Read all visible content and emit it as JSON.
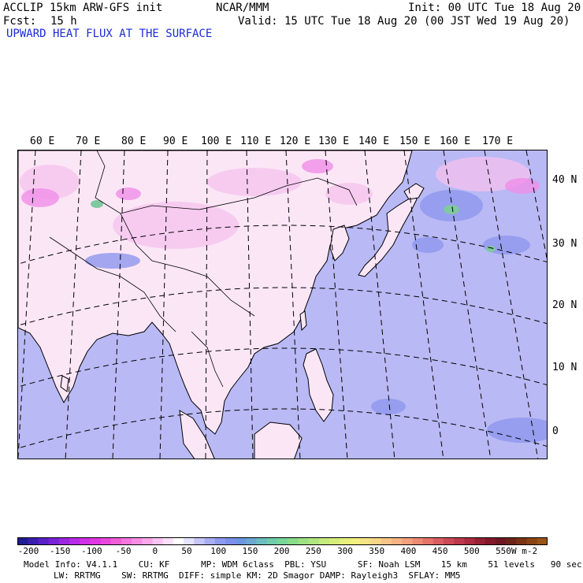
{
  "header": {
    "model": "ACCLIP 15km ARW-GFS init",
    "forecast_label": "Fcst:",
    "forecast_value": "15 h",
    "center": "NCAR/MMM",
    "init": "Init: 00 UTC Tue 18 Aug 20",
    "valid": "Valid: 15 UTC Tue 18 Aug 20 (00 JST Wed 19 Aug 20)",
    "field": "UPWARD HEAT FLUX AT THE SURFACE"
  },
  "map": {
    "lon_labels": [
      "60 E",
      "70 E",
      "80 E",
      "90 E",
      "100 E",
      "110 E",
      "120 E",
      "130 E",
      "140 E",
      "150 E",
      "160 E",
      "170 E"
    ],
    "lat_labels": [
      "40 N",
      "30 N",
      "20 N",
      "10 N",
      "0"
    ],
    "colors": {
      "ocean": "#b9b9f5",
      "land_warm": "#fbe6f6",
      "land_pink": "#f6c2ee",
      "magenta": "#f08ee8",
      "blue_patch": "#8f96ee",
      "green_patch": "#80c8a0",
      "outline": "#000000"
    }
  },
  "colorbar": {
    "colors": [
      "#1f1c94",
      "#3a1eb0",
      "#5a1fc8",
      "#7a22d8",
      "#9a26e0",
      "#b82be6",
      "#d030e6",
      "#e038e0",
      "#ea48dc",
      "#f05ed8",
      "#f476de",
      "#f88ee4",
      "#faa8ea",
      "#fcc4f2",
      "#fde0f8",
      "#ffffff",
      "#e4e4fc",
      "#c6c6f8",
      "#a8aef2",
      "#8e9aee",
      "#7c90ea",
      "#6c96e0",
      "#6aa8d0",
      "#6cbcc0",
      "#70ccaa",
      "#78d698",
      "#88dc8a",
      "#9ce282",
      "#b0e67e",
      "#c4ea7c",
      "#d6ee7a",
      "#e6f07a",
      "#f2ee80",
      "#f6e484",
      "#f8d688",
      "#f8c688",
      "#f6b484",
      "#f2a07c",
      "#ec8a74",
      "#e4746a",
      "#da5e60",
      "#cc4a56",
      "#bc384c",
      "#aa2a40",
      "#962034",
      "#82182a",
      "#701822",
      "#6e2418",
      "#7a3414",
      "#8a4414",
      "#9a5418"
    ],
    "ticks": [
      "-200",
      "-150",
      "-100",
      "-50",
      "0",
      "50",
      "100",
      "150",
      "200",
      "250",
      "300",
      "350",
      "400",
      "450",
      "500",
      "550"
    ],
    "units": "W m-2"
  },
  "footer": {
    "line1": "Model Info: V4.1.1    CU: KF      MP: WDM 6class  PBL: YSU      SF: Noah LSM    15 km    51 levels   90 sec",
    "line2": "LW: RRTMG    SW: RRTMG  DIFF: simple KM: 2D Smagor DAMP: Rayleigh3  SFLAY: MM5"
  }
}
